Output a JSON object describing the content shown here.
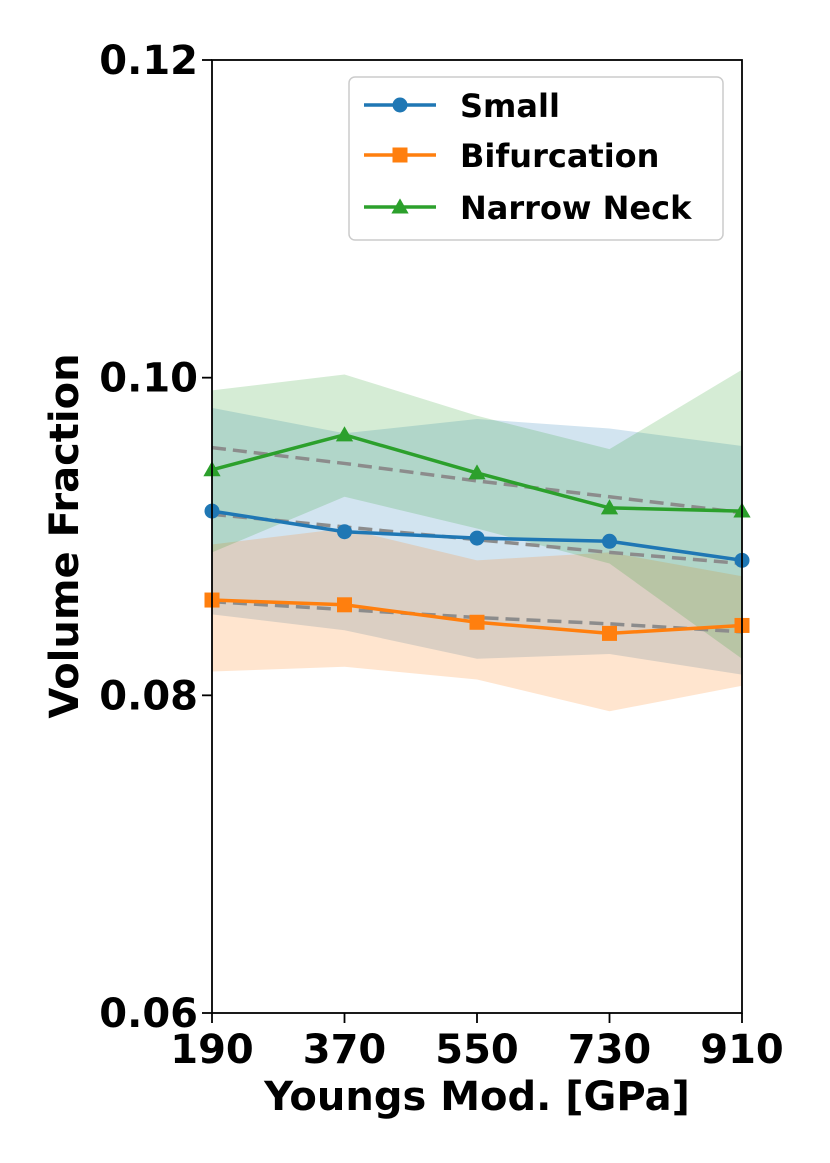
{
  "chart_data": {
    "type": "line",
    "xlabel": "Youngs Mod. [GPa]",
    "ylabel": "Volume Fraction",
    "x": [
      190,
      370,
      550,
      730,
      910
    ],
    "x_tick_labels": [
      "190",
      "370",
      "550",
      "730",
      "910"
    ],
    "y_ticks": [
      0.06,
      0.08,
      0.1,
      0.12
    ],
    "y_tick_labels": [
      "0.06",
      "0.08",
      "0.10",
      "0.12"
    ],
    "xlim": [
      190,
      910
    ],
    "ylim": [
      0.06,
      0.12
    ],
    "grid": false,
    "legend_position": "top-right",
    "series": [
      {
        "name": "Small",
        "color": "#1f77b4",
        "marker": "circle",
        "values": [
          0.0916,
          0.0903,
          0.0899,
          0.0897,
          0.0885
        ],
        "band_upper": [
          0.0981,
          0.0965,
          0.0974,
          0.0968,
          0.0957
        ],
        "band_lower": [
          0.0851,
          0.0841,
          0.0823,
          0.0826,
          0.0813
        ],
        "trend": [
          0.0914,
          0.0906,
          0.0898,
          0.089,
          0.0883
        ]
      },
      {
        "name": "Bifurcation",
        "color": "#ff7f0e",
        "marker": "square",
        "values": [
          0.086,
          0.0857,
          0.0846,
          0.0839,
          0.0844
        ],
        "band_upper": [
          0.0895,
          0.0905,
          0.0885,
          0.089,
          0.0875
        ],
        "band_lower": [
          0.0815,
          0.0818,
          0.081,
          0.079,
          0.0806
        ],
        "trend": [
          0.0859,
          0.0854,
          0.0849,
          0.0845,
          0.084
        ]
      },
      {
        "name": "Narrow Neck",
        "color": "#2ca02c",
        "marker": "triangle",
        "values": [
          0.0942,
          0.0964,
          0.094,
          0.0918,
          0.0916
        ],
        "band_upper": [
          0.0992,
          0.1002,
          0.0976,
          0.0955,
          0.1005
        ],
        "band_lower": [
          0.089,
          0.0925,
          0.0905,
          0.0883,
          0.0823
        ],
        "trend": [
          0.0956,
          0.0946,
          0.0935,
          0.0925,
          0.0915
        ]
      }
    ]
  }
}
